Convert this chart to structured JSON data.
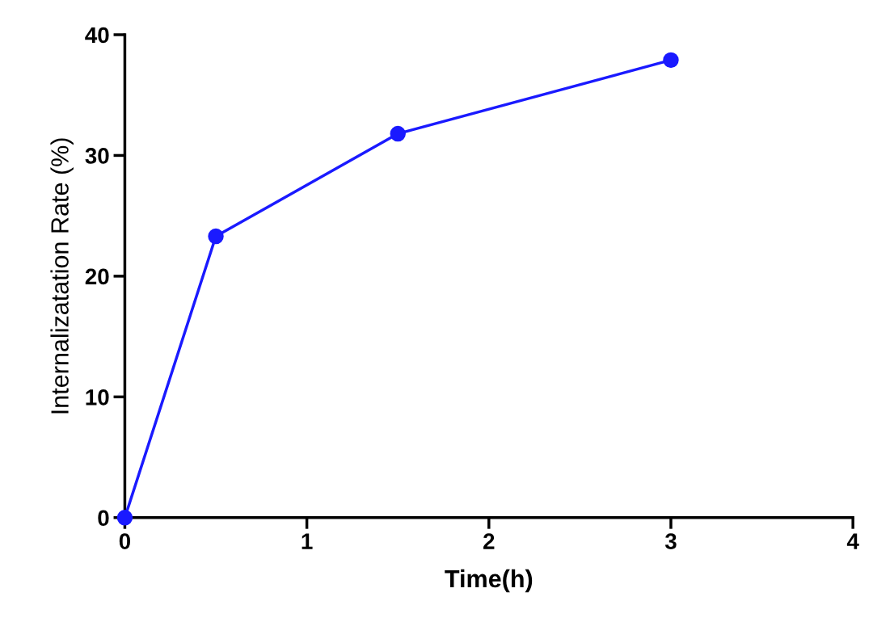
{
  "chart_data": {
    "type": "line",
    "xlabel": "Time(h)",
    "ylabel": "Internalizatation Rate (%)",
    "x": [
      0,
      0.5,
      1.5,
      3
    ],
    "series": [
      {
        "color": "#1a1aff",
        "values": [
          0,
          23.3,
          31.8,
          37.9
        ]
      }
    ],
    "xlim": [
      0,
      4
    ],
    "xticks": [
      0,
      1,
      2,
      3,
      4
    ],
    "ylim": [
      0,
      40
    ],
    "yticks": [
      0,
      10,
      20,
      30,
      40
    ],
    "marker": "circle",
    "line_style": "solid",
    "grid": false,
    "legend": false
  }
}
